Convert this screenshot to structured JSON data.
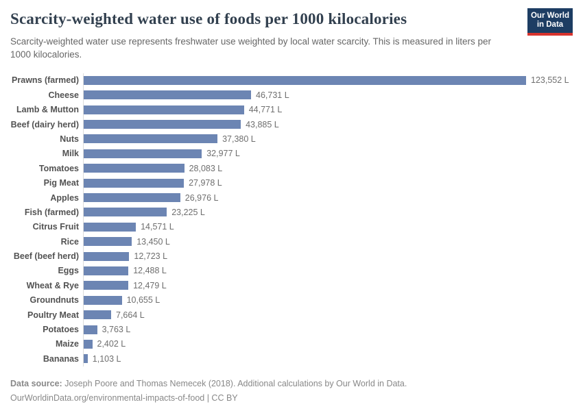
{
  "header": {
    "title": "Scarcity-weighted water use of foods per 1000 kilocalories",
    "subtitle": "Scarcity-weighted water use represents freshwater use weighted by local water scarcity. This is measured in liters per 1000 kilocalories.",
    "logo": {
      "line1": "Our World",
      "line2": "in Data",
      "bg_color": "#1d3d63",
      "accent_color": "#d8332e"
    }
  },
  "chart_data": {
    "type": "bar",
    "orientation": "horizontal",
    "title": "Scarcity-weighted water use of foods per 1000 kilocalories",
    "unit": "L",
    "grid": false,
    "xlim": [
      0,
      123552
    ],
    "bar_color": "#6c85b3",
    "categories": [
      "Prawns (farmed)",
      "Cheese",
      "Lamb & Mutton",
      "Beef (dairy herd)",
      "Nuts",
      "Milk",
      "Tomatoes",
      "Pig Meat",
      "Apples",
      "Fish (farmed)",
      "Citrus Fruit",
      "Rice",
      "Beef (beef herd)",
      "Eggs",
      "Wheat & Rye",
      "Groundnuts",
      "Poultry Meat",
      "Potatoes",
      "Maize",
      "Bananas"
    ],
    "values": [
      123552,
      46731,
      44771,
      43885,
      37380,
      32977,
      28083,
      27978,
      26976,
      23225,
      14571,
      13450,
      12723,
      12488,
      12479,
      10655,
      7664,
      3763,
      2402,
      1103
    ],
    "value_labels": [
      "123,552 L",
      "46,731 L",
      "44,771 L",
      "43,885 L",
      "37,380 L",
      "32,977 L",
      "28,083 L",
      "27,978 L",
      "26,976 L",
      "23,225 L",
      "14,571 L",
      "13,450 L",
      "12,723 L",
      "12,488 L",
      "12,479 L",
      "10,655 L",
      "7,664 L",
      "3,763 L",
      "2,402 L",
      "1,103 L"
    ]
  },
  "footer": {
    "source_label": "Data source:",
    "source_text": " Joseph Poore and Thomas Nemecek (2018). Additional calculations by Our World in Data.",
    "url_line": "OurWorldinData.org/environmental-impacts-of-food | CC BY"
  }
}
